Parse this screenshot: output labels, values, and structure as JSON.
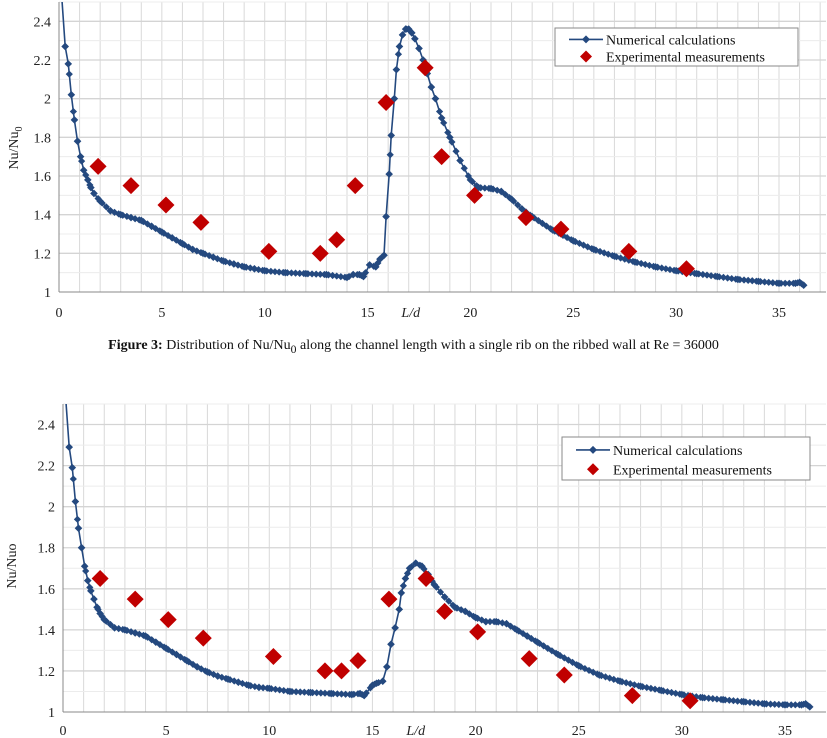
{
  "caption": {
    "label": "Figure 3:",
    "text_before_sub": "Distribution of Nu/Nu",
    "sub": "0",
    "text_after_sub": " along the channel length with a single rib on the ribbed wall at Re = 36000"
  },
  "colors": {
    "numerical": "#24497f",
    "experimental": "#c00000",
    "grid": "#d9d9d9",
    "axis": "#888888"
  },
  "chart_data": [
    {
      "type": "scatter",
      "xlabel": "L/d",
      "ylabel": "Nu/Nu",
      "ylabel_sub": "0",
      "xlim": [
        0,
        37.3
      ],
      "ylim": [
        1,
        2.5
      ],
      "x_ticks": [
        0,
        5,
        10,
        15,
        20,
        25,
        30,
        35
      ],
      "y_ticks": [
        1,
        1.2,
        1.4,
        1.6,
        1.8,
        2,
        2.2,
        2.4
      ],
      "y_tick_labels": [
        "1",
        "1.2",
        "1.4",
        "1.6",
        "1.8",
        "2",
        "2.2",
        "2.4"
      ],
      "grid": true,
      "legend": "top-right",
      "series": [
        {
          "name": "Numerical calculations",
          "style": "line-diamond",
          "x": [
            0.15,
            0.3,
            0.45,
            0.6,
            0.75,
            0.9,
            1.05,
            1.2,
            1.4,
            1.55,
            1.7,
            2,
            2.5,
            3,
            3.5,
            4,
            4.5,
            5,
            5.5,
            6,
            6.5,
            7,
            7.5,
            8,
            8.5,
            9,
            9.5,
            10,
            11,
            12,
            13,
            14,
            14.3,
            14.6,
            14.8,
            15.1,
            15.4,
            15.6,
            15.8,
            15.9,
            16.05,
            16.15,
            16.3,
            16.4,
            16.55,
            16.7,
            16.85,
            17,
            17.15,
            17.3,
            17.5,
            17.7,
            17.9,
            18.1,
            18.3,
            18.6,
            19,
            19.5,
            20,
            20.4,
            21,
            21.5,
            22,
            22.5,
            23,
            24,
            25,
            26,
            27,
            28,
            29,
            30,
            31,
            32,
            33,
            34,
            35,
            35.8,
            36,
            36.2
          ],
          "y": [
            2.5,
            2.27,
            2.18,
            2.02,
            1.89,
            1.78,
            1.7,
            1.63,
            1.58,
            1.54,
            1.51,
            1.47,
            1.42,
            1.4,
            1.385,
            1.37,
            1.34,
            1.31,
            1.28,
            1.25,
            1.22,
            1.2,
            1.18,
            1.16,
            1.145,
            1.13,
            1.12,
            1.11,
            1.1,
            1.095,
            1.09,
            1.075,
            1.09,
            1.09,
            1.08,
            1.14,
            1.13,
            1.17,
            1.19,
            1.39,
            1.61,
            1.81,
            2.0,
            2.15,
            2.27,
            2.33,
            2.36,
            2.36,
            2.34,
            2.31,
            2.26,
            2.2,
            2.13,
            2.06,
            2.0,
            1.9,
            1.8,
            1.68,
            1.58,
            1.54,
            1.535,
            1.52,
            1.48,
            1.43,
            1.39,
            1.32,
            1.265,
            1.22,
            1.185,
            1.155,
            1.13,
            1.11,
            1.095,
            1.08,
            1.065,
            1.055,
            1.045,
            1.045,
            1.05,
            1.035
          ]
        },
        {
          "name": "Experimental measurements",
          "style": "diamond",
          "x": [
            1.9,
            3.5,
            5.2,
            6.9,
            10.2,
            12.7,
            13.5,
            14.4,
            15.9,
            17.8,
            18.6,
            20.2,
            22.7,
            24.4,
            27.7,
            30.5
          ],
          "y": [
            1.65,
            1.55,
            1.45,
            1.36,
            1.21,
            1.2,
            1.27,
            1.55,
            1.98,
            2.16,
            1.7,
            1.5,
            1.385,
            1.325,
            1.21,
            1.12
          ]
        }
      ]
    },
    {
      "type": "scatter",
      "xlabel": "L/d",
      "ylabel": "Nu/Nuo",
      "ylabel_sub": "",
      "xlim": [
        0,
        37.1
      ],
      "ylim": [
        1,
        2.5
      ],
      "x_ticks": [
        0,
        5,
        10,
        15,
        20,
        25,
        30,
        35
      ],
      "y_ticks": [
        1,
        1.2,
        1.4,
        1.6,
        1.8,
        2,
        2.2,
        2.4
      ],
      "y_tick_labels": [
        "1",
        "1.2",
        "1.4",
        "1.6",
        "1.8",
        "2",
        "2.2",
        "2.4"
      ],
      "grid": true,
      "legend": "top-right",
      "series": [
        {
          "name": "Numerical calculations",
          "style": "line-diamond",
          "x": [
            0.15,
            0.3,
            0.45,
            0.6,
            0.75,
            0.9,
            1.05,
            1.2,
            1.35,
            1.5,
            1.65,
            1.8,
            2,
            2.5,
            3,
            3.5,
            4,
            4.5,
            5,
            5.5,
            6,
            6.5,
            7,
            7.5,
            8,
            8.5,
            9,
            9.5,
            10,
            11,
            12,
            13,
            14,
            14.4,
            14.6,
            15,
            15.2,
            15.5,
            15.7,
            15.9,
            16.1,
            16.3,
            16.4,
            16.6,
            16.8,
            17.1,
            17.4,
            17.7,
            18,
            18.5,
            19,
            19.5,
            20,
            20.5,
            21,
            21.5,
            22,
            22.5,
            23,
            24,
            25,
            26,
            27,
            28,
            29,
            30,
            31,
            32,
            33,
            34,
            35,
            35.8,
            36,
            36.2
          ],
          "y": [
            2.5,
            2.29,
            2.19,
            2.025,
            1.895,
            1.8,
            1.71,
            1.64,
            1.59,
            1.55,
            1.51,
            1.48,
            1.45,
            1.41,
            1.4,
            1.385,
            1.37,
            1.34,
            1.31,
            1.28,
            1.25,
            1.22,
            1.195,
            1.175,
            1.16,
            1.145,
            1.13,
            1.12,
            1.115,
            1.1,
            1.095,
            1.09,
            1.085,
            1.09,
            1.08,
            1.13,
            1.14,
            1.15,
            1.22,
            1.33,
            1.41,
            1.5,
            1.58,
            1.65,
            1.7,
            1.725,
            1.71,
            1.67,
            1.62,
            1.56,
            1.51,
            1.49,
            1.46,
            1.44,
            1.44,
            1.43,
            1.4,
            1.37,
            1.34,
            1.28,
            1.225,
            1.18,
            1.15,
            1.125,
            1.105,
            1.085,
            1.07,
            1.06,
            1.05,
            1.04,
            1.035,
            1.035,
            1.04,
            1.025
          ]
        },
        {
          "name": "Experimental measurements",
          "style": "diamond",
          "x": [
            1.8,
            3.5,
            5.1,
            6.8,
            10.2,
            12.7,
            13.5,
            14.3,
            15.8,
            17.6,
            18.5,
            20.1,
            22.6,
            24.3,
            27.6,
            30.4
          ],
          "y": [
            1.65,
            1.55,
            1.45,
            1.36,
            1.27,
            1.2,
            1.2,
            1.25,
            1.55,
            1.65,
            1.49,
            1.39,
            1.26,
            1.18,
            1.08,
            1.055
          ]
        }
      ]
    }
  ]
}
